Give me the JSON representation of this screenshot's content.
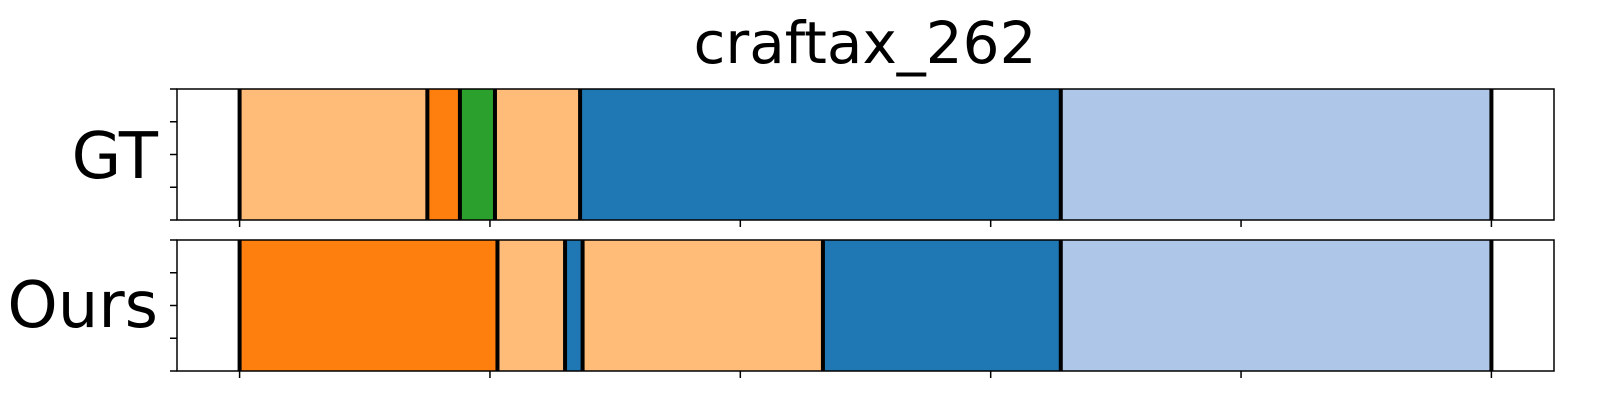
{
  "chart_data": {
    "type": "bar",
    "title": "craftax_262",
    "rows": [
      {
        "label": "GT",
        "segments": [
          {
            "start": 0,
            "end": 75,
            "color": "#ffbb78"
          },
          {
            "start": 75,
            "end": 88,
            "color": "#ff7f0e"
          },
          {
            "start": 88,
            "end": 102,
            "color": "#2ca02c"
          },
          {
            "start": 102,
            "end": 136,
            "color": "#ffbb78"
          },
          {
            "start": 136,
            "end": 328,
            "color": "#1f77b4"
          },
          {
            "start": 328,
            "end": 500,
            "color": "#aec7e8"
          }
        ]
      },
      {
        "label": "Ours",
        "segments": [
          {
            "start": 0,
            "end": 103,
            "color": "#ff7f0e"
          },
          {
            "start": 103,
            "end": 130,
            "color": "#ffbb78"
          },
          {
            "start": 130,
            "end": 137,
            "color": "#1f77b4"
          },
          {
            "start": 137,
            "end": 233,
            "color": "#ffbb78"
          },
          {
            "start": 233,
            "end": 328,
            "color": "#1f77b4"
          },
          {
            "start": 328,
            "end": 500,
            "color": "#aec7e8"
          }
        ]
      }
    ],
    "xlim": [
      -25,
      525
    ],
    "xticks": [
      0,
      100,
      200,
      300,
      400,
      500
    ],
    "boundary_color": "#000000",
    "grid": false
  }
}
